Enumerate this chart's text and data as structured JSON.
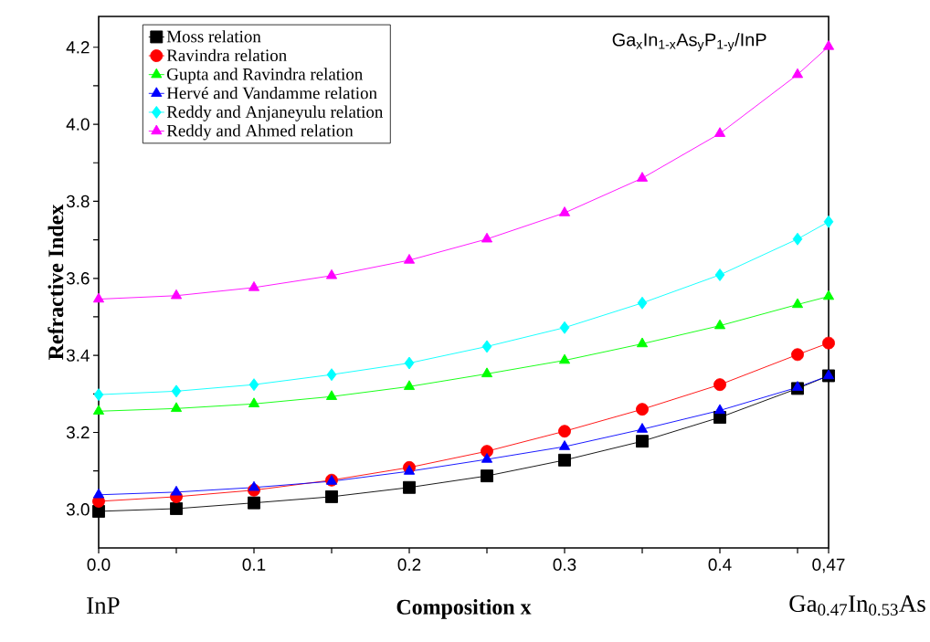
{
  "chart_data": {
    "type": "line",
    "title": "Ga$_{x}$In$_{1-x}$As$_{y}$P$_{1-y}$/InP",
    "xlabel": "Composition x",
    "ylabel": "Refractive Index",
    "annotations": [
      "InP",
      "Ga$_{0.47}$In$_{0.53}$As"
    ],
    "x": [
      0,
      0.05,
      0.1,
      0.15,
      0.2,
      0.25,
      0.3,
      0.35,
      0.4,
      0.45,
      0.47
    ],
    "series": [
      {
        "name": "Moss relation",
        "color": "#000000",
        "marker": "square",
        "values": [
          2.995,
          3.002,
          3.017,
          3.033,
          3.057,
          3.087,
          3.128,
          3.177,
          3.239,
          3.314,
          3.347
        ]
      },
      {
        "name": "Ravindra relation",
        "color": "#ff0000",
        "marker": "circle",
        "values": [
          3.021,
          3.033,
          3.05,
          3.076,
          3.109,
          3.151,
          3.203,
          3.26,
          3.324,
          3.402,
          3.432
        ]
      },
      {
        "name": "Gupta and Ravindra relation",
        "color": "#00ff00",
        "marker": "triangle",
        "values": [
          3.255,
          3.262,
          3.274,
          3.293,
          3.319,
          3.352,
          3.387,
          3.43,
          3.477,
          3.532,
          3.553
        ]
      },
      {
        "name": "Hervé and Vandamme relation",
        "color": "#0000ff",
        "marker": "triangle-down",
        "values": [
          3.038,
          3.045,
          3.057,
          3.073,
          3.099,
          3.13,
          3.163,
          3.208,
          3.257,
          3.317,
          3.347
        ]
      },
      {
        "name": "Reddy and Anjaneyulu relation",
        "color": "#00ffff",
        "marker": "diamond",
        "values": [
          3.298,
          3.307,
          3.324,
          3.35,
          3.38,
          3.423,
          3.472,
          3.536,
          3.609,
          3.702,
          3.747
        ]
      },
      {
        "name": "Reddy and Ahmed relation",
        "color": "#ff00ff",
        "marker": "triangle-left",
        "values": [
          3.546,
          3.555,
          3.576,
          3.607,
          3.647,
          3.702,
          3.77,
          3.86,
          3.976,
          4.129,
          4.202
        ]
      }
    ],
    "xlim": [
      0,
      0.47
    ],
    "ylim": [
      2.9,
      4.28
    ],
    "xticks": [
      {
        "value": 0,
        "label": "0.0"
      },
      {
        "value": 0.05,
        "label": null
      },
      0.1,
      {
        "value": 0.15,
        "label": null
      },
      0.2,
      {
        "value": 0.25,
        "label": null
      },
      0.3,
      {
        "value": 0.35,
        "label": null
      },
      0.4,
      {
        "value": 0.45,
        "label": null
      },
      {
        "value": 0.47,
        "label": "0,47"
      }
    ],
    "yticks": [
      {
        "value": 3,
        "label": "3.0"
      },
      {
        "value": 3.1,
        "label": null
      },
      3.2,
      {
        "value": 3.3,
        "label": null
      },
      3.4,
      {
        "value": 3.5,
        "label": null
      },
      3.6,
      {
        "value": 3.7,
        "label": null
      },
      3.8,
      {
        "value": 3.9,
        "label": null
      },
      {
        "value": 4,
        "label": "4.0"
      },
      {
        "value": 4.1,
        "label": null
      },
      4.2
    ],
    "legend": "top left",
    "grid": false
  }
}
